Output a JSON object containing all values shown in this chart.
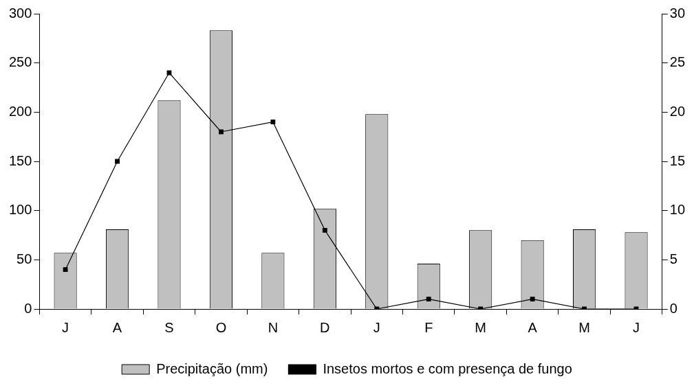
{
  "chart_data": {
    "type": "bar",
    "categories": [
      "J",
      "A",
      "S",
      "O",
      "N",
      "D",
      "J",
      "F",
      "M",
      "A",
      "M",
      "J"
    ],
    "series": [
      {
        "name": "Precipitação (mm)",
        "color": "#c0c0c0",
        "values": [
          57,
          81,
          212,
          283,
          57,
          102,
          198,
          46,
          80,
          70,
          81,
          78
        ]
      },
      {
        "name": "Insetos mortos e com presença de fungo",
        "type": "line",
        "axis": "y2",
        "color": "#000000",
        "values": [
          4,
          15,
          24,
          18,
          19,
          8,
          0,
          1,
          0,
          1,
          0,
          0
        ]
      }
    ],
    "ylim": [
      0,
      300
    ],
    "yticks": [
      0,
      50,
      100,
      150,
      200,
      250,
      300
    ],
    "y2lim": [
      0,
      30
    ],
    "y2ticks": [
      0,
      5,
      10,
      15,
      20,
      25,
      30
    ],
    "grid": false,
    "legend": "bottom",
    "marker": "square",
    "line_style": "solid"
  }
}
